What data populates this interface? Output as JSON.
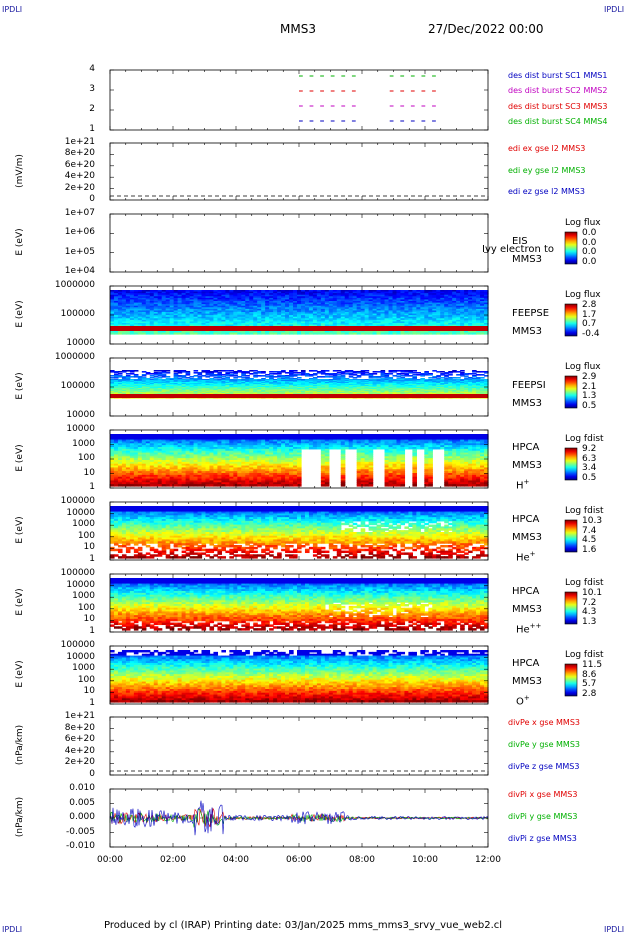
{
  "header": {
    "corner_tl": "IPDLI",
    "corner_tr": "IPDLI",
    "corner_bl": "IPDLI",
    "corner_br": "IPDLI",
    "mission": "MMS3",
    "datetime": "27/Dec/2022 00:00"
  },
  "footer": {
    "text": "Produced by cl (IRAP)   Printing date: 03/Jan/2025   mms_mms3_srvy_vue_web2.cl"
  },
  "x_axis": {
    "ticks": [
      "00:00",
      "02:00",
      "04:00",
      "06:00",
      "08:00",
      "10:00",
      "12:00"
    ]
  },
  "colors": {
    "red": "#e00000",
    "green": "#00b000",
    "blue": "#0000c0",
    "magenta": "#c000c0"
  },
  "chart_data": [
    {
      "type": "scatter",
      "name": "burst",
      "ylim": [
        0.5,
        4.5
      ],
      "ticks": [
        "4",
        "3",
        "2",
        "1"
      ],
      "series": [
        {
          "name": "des dist burst SC1 MMS1",
          "color": "#0000c0"
        },
        {
          "name": "des dist burst SC2 MMS2",
          "color": "#c000c0"
        },
        {
          "name": "des dist burst SC3 MMS3",
          "color": "#e00000"
        },
        {
          "name": "des dist burst SC4 MMS4",
          "color": "#00b000"
        }
      ]
    },
    {
      "type": "line",
      "name": "edi",
      "ylabel": "(mV/m)",
      "ticks": [
        "1e+21",
        "8e+20",
        "6e+20",
        "4e+20",
        "2e+20",
        "0"
      ],
      "series": [
        {
          "name": "edi ex gse l2 MMS3",
          "color": "#e00000"
        },
        {
          "name": "edi ey gse l2 MMS3",
          "color": "#00b000"
        },
        {
          "name": "edi ez gse l2 MMS3",
          "color": "#0000c0"
        }
      ]
    },
    {
      "type": "heatmap",
      "name": "eis",
      "ylabel": "E (eV)",
      "ticks": [
        "1e+07",
        "1e+06",
        "1e+05",
        "1e+04"
      ],
      "label": "EIS",
      "label2": "MMS3",
      "note": "Ivy electron to",
      "colorbar": {
        "title": "Log flux",
        "values": [
          "0.0",
          "0.0",
          "0.0",
          "0.0"
        ]
      }
    },
    {
      "type": "heatmap",
      "name": "feepse",
      "ylabel": "E (eV)",
      "ticks": [
        "1000000",
        "100000",
        "10000"
      ],
      "label": "FEEPSE",
      "label2": "MMS3",
      "colorbar": {
        "title": "Log flux",
        "values": [
          "2.8",
          "1.7",
          "0.7",
          "-0.4"
        ]
      }
    },
    {
      "type": "heatmap",
      "name": "feepsi",
      "ylabel": "E (eV)",
      "ticks": [
        "1000000",
        "100000",
        "10000"
      ],
      "label": "FEEPSI",
      "label2": "MMS3",
      "colorbar": {
        "title": "Log flux",
        "values": [
          "2.9",
          "2.1",
          "1.3",
          "0.5"
        ]
      }
    },
    {
      "type": "heatmap",
      "name": "hpca-h",
      "ylabel": "E (eV)",
      "ticks": [
        "10000",
        "1000",
        "100",
        "10",
        "1"
      ],
      "label": "HPCA",
      "label2": "MMS3",
      "species": "H",
      "charge": "+",
      "colorbar": {
        "title": "Log fdist",
        "values": [
          "9.2",
          "6.3",
          "3.4",
          "0.5"
        ]
      }
    },
    {
      "type": "heatmap",
      "name": "hpca-he",
      "ylabel": "E (eV)",
      "ticks": [
        "100000",
        "10000",
        "1000",
        "100",
        "10",
        "1"
      ],
      "label": "HPCA",
      "label2": "MMS3",
      "species": "He",
      "charge": "+",
      "colorbar": {
        "title": "Log fdist",
        "values": [
          "10.3",
          "7.4",
          "4.5",
          "1.6"
        ]
      }
    },
    {
      "type": "heatmap",
      "name": "hpca-hepp",
      "ylabel": "E (eV)",
      "ticks": [
        "100000",
        "10000",
        "1000",
        "100",
        "10",
        "1"
      ],
      "label": "HPCA",
      "label2": "MMS3",
      "species": "He",
      "charge": "++",
      "colorbar": {
        "title": "Log fdist",
        "values": [
          "10.1",
          "7.2",
          "4.3",
          "1.3"
        ]
      }
    },
    {
      "type": "heatmap",
      "name": "hpca-o",
      "ylabel": "E (eV)",
      "ticks": [
        "100000",
        "10000",
        "1000",
        "100",
        "10",
        "1"
      ],
      "label": "HPCA",
      "label2": "MMS3",
      "species": "O",
      "charge": "+",
      "colorbar": {
        "title": "Log fdist",
        "values": [
          "11.5",
          "8.6",
          "5.7",
          "2.8"
        ]
      }
    },
    {
      "type": "line",
      "name": "divpe",
      "ylabel": "(nPa/km)",
      "ticks": [
        "1e+21",
        "8e+20",
        "6e+20",
        "4e+20",
        "2e+20",
        "0"
      ],
      "series": [
        {
          "name": "divPe x gse MMS3",
          "color": "#e00000"
        },
        {
          "name": "divPe y gse MMS3",
          "color": "#00b000"
        },
        {
          "name": "divPe z gse MMS3",
          "color": "#0000c0"
        }
      ]
    },
    {
      "type": "line",
      "name": "divpi",
      "ylabel": "(nPa/km)",
      "ylim": [
        -0.012,
        0.012
      ],
      "ticks": [
        "0.010",
        "0.005",
        "0.000",
        "-0.005",
        "-0.010"
      ],
      "series": [
        {
          "name": "divPi x gse MMS3",
          "color": "#e00000"
        },
        {
          "name": "divPi y gse MMS3",
          "color": "#00b000"
        },
        {
          "name": "divPi z gse MMS3",
          "color": "#0000c0"
        }
      ]
    }
  ]
}
